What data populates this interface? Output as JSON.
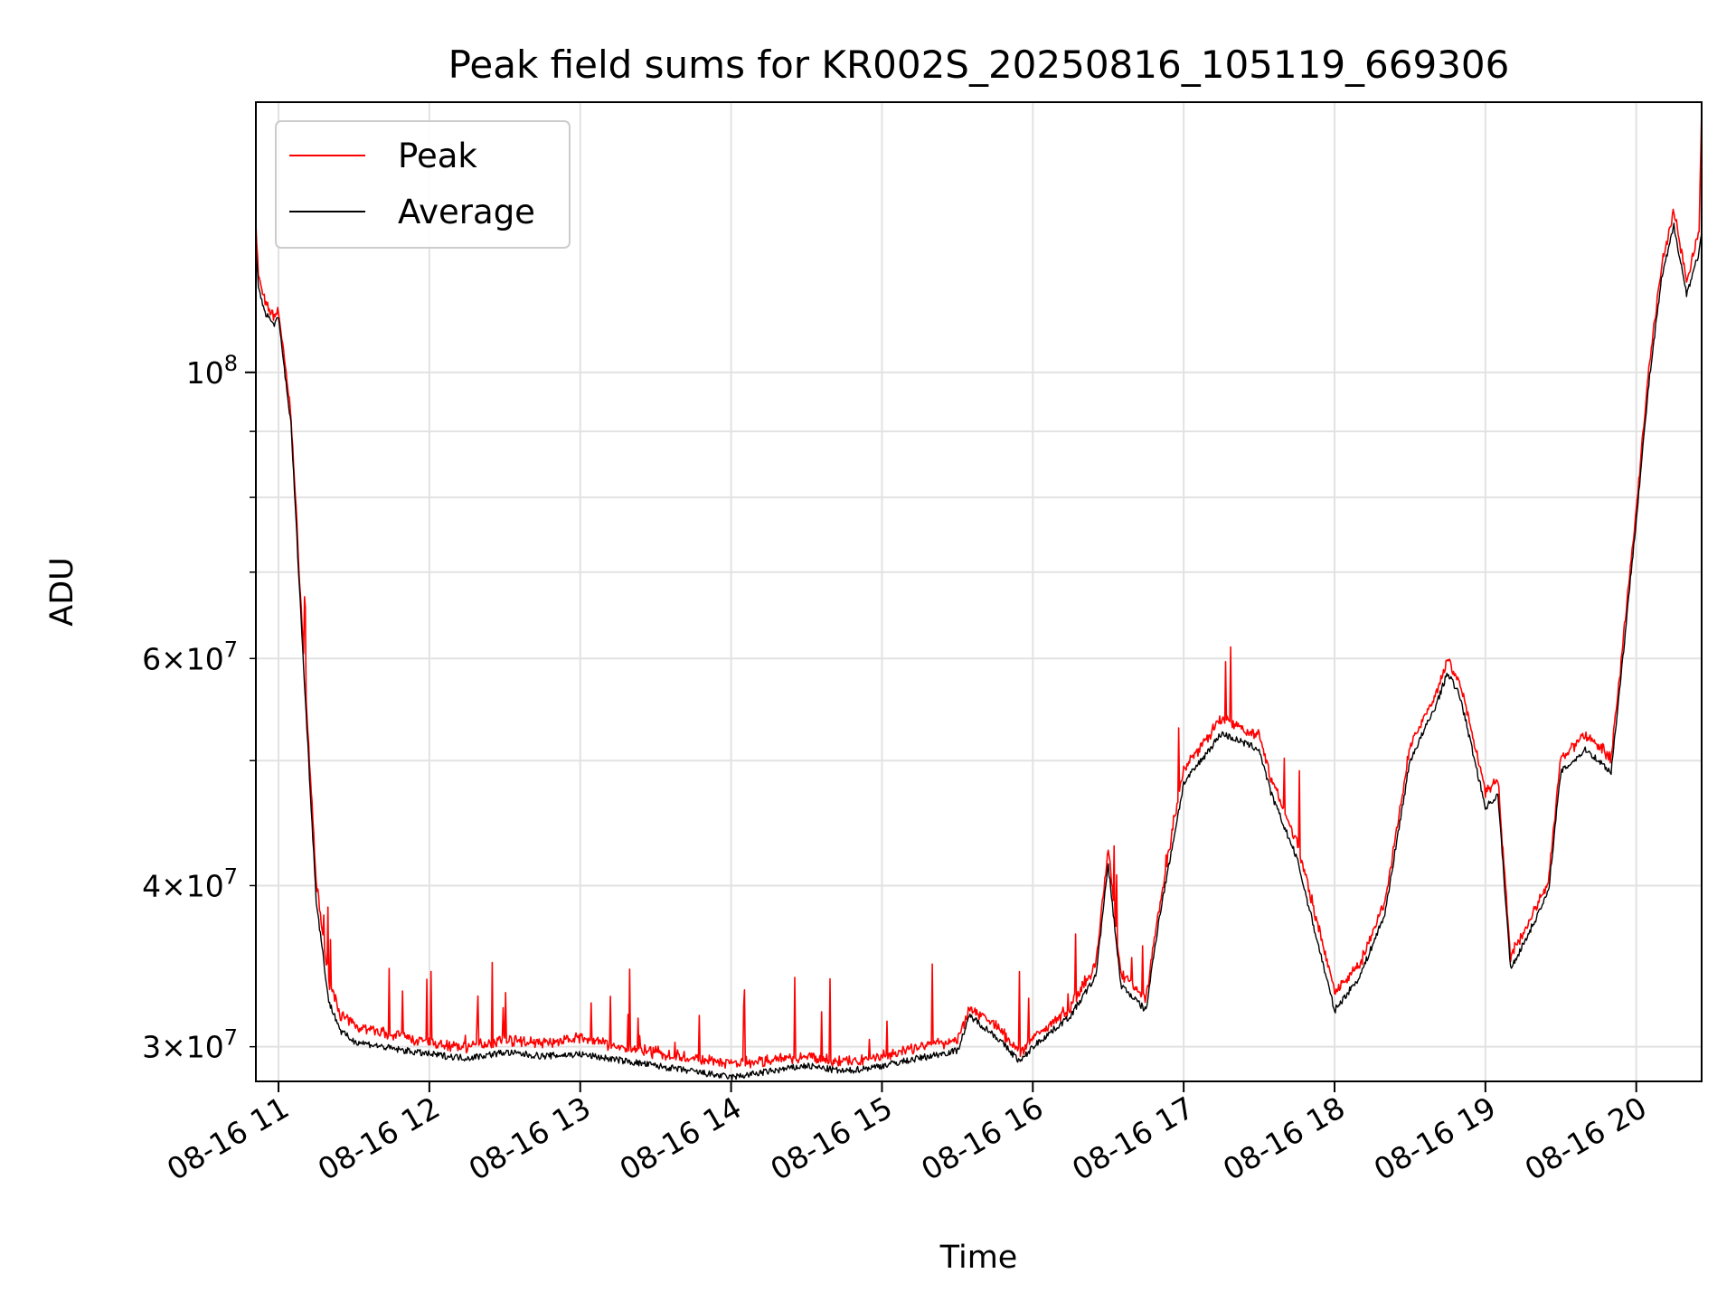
{
  "chart_data": {
    "type": "line",
    "title": "Peak field sums for KR002S_20250816_105119_669306",
    "xlabel": "Time",
    "ylabel": "ADU",
    "y_scale": "log",
    "grid": true,
    "legend_position": "top-left",
    "x_range": [
      "2025-08-16 10:51",
      "2025-08-16 20:26"
    ],
    "ylim": [
      28200000,
      162000000
    ],
    "x_ticks": [
      "08-16 11",
      "08-16 12",
      "08-16 13",
      "08-16 14",
      "08-16 15",
      "08-16 16",
      "08-16 17",
      "08-16 18",
      "08-16 19",
      "08-16 20"
    ],
    "y_ticks_major": [
      {
        "value": 100000000,
        "base": "10",
        "exp": "8",
        "mult": ""
      }
    ],
    "y_ticks_minor": [
      {
        "value": 30000000,
        "mult": "3",
        "base": "10",
        "exp": "7"
      },
      {
        "value": 40000000,
        "mult": "4",
        "base": "10",
        "exp": "7"
      },
      {
        "value": 60000000,
        "mult": "6",
        "base": "10",
        "exp": "7"
      }
    ],
    "series": [
      {
        "name": "Peak",
        "color": "#ff0000",
        "x": [
          "10:51",
          "10:52",
          "10:55",
          "10:58",
          "11:00",
          "11:05",
          "11:10",
          "11:15",
          "11:20",
          "11:25",
          "11:30",
          "11:45",
          "12:00",
          "12:15",
          "12:30",
          "12:45",
          "13:00",
          "13:15",
          "13:30",
          "13:45",
          "14:00",
          "14:15",
          "14:30",
          "14:45",
          "15:00",
          "15:15",
          "15:30",
          "15:35",
          "15:45",
          "15:55",
          "16:00",
          "16:15",
          "16:25",
          "16:30",
          "16:35",
          "16:45",
          "16:50",
          "17:00",
          "17:15",
          "17:30",
          "17:35",
          "17:45",
          "18:00",
          "18:10",
          "18:20",
          "18:30",
          "18:40",
          "18:45",
          "18:50",
          "19:00",
          "19:05",
          "19:10",
          "19:15",
          "19:25",
          "19:30",
          "19:40",
          "19:50",
          "19:55",
          "20:00",
          "20:05",
          "20:10",
          "20:15",
          "20:20",
          "20:25",
          "20:26"
        ],
        "values": [
          130000000,
          118000000,
          112000000,
          110000000,
          111000000,
          92000000,
          60000000,
          40000000,
          33500000,
          31500000,
          31000000,
          30500000,
          30000000,
          29800000,
          30200000,
          30000000,
          30300000,
          29800000,
          29500000,
          29200000,
          28900000,
          29100000,
          29300000,
          29000000,
          29300000,
          29800000,
          30200000,
          32000000,
          31000000,
          29500000,
          30300000,
          32000000,
          34500000,
          42500000,
          34000000,
          32500000,
          38000000,
          49000000,
          53500000,
          52000000,
          48000000,
          43000000,
          33000000,
          34500000,
          38500000,
          51000000,
          56000000,
          59500000,
          57000000,
          47000000,
          48000000,
          35000000,
          36500000,
          40000000,
          50000000,
          52000000,
          50000000,
          62000000,
          78000000,
          100000000,
          120000000,
          133000000,
          117000000,
          128000000,
          160000000
        ]
      },
      {
        "name": "Average",
        "color": "#000000",
        "x": [
          "10:51",
          "10:52",
          "10:55",
          "10:58",
          "11:00",
          "11:05",
          "11:10",
          "11:15",
          "11:20",
          "11:25",
          "11:30",
          "11:45",
          "12:00",
          "12:15",
          "12:30",
          "12:45",
          "13:00",
          "13:15",
          "13:30",
          "13:45",
          "14:00",
          "14:15",
          "14:30",
          "14:45",
          "15:00",
          "15:15",
          "15:30",
          "15:35",
          "15:45",
          "15:55",
          "16:00",
          "16:15",
          "16:25",
          "16:30",
          "16:35",
          "16:45",
          "16:50",
          "17:00",
          "17:15",
          "17:30",
          "17:35",
          "17:45",
          "18:00",
          "18:10",
          "18:20",
          "18:30",
          "18:40",
          "18:45",
          "18:50",
          "19:00",
          "19:05",
          "19:10",
          "19:15",
          "19:25",
          "19:30",
          "19:40",
          "19:50",
          "19:55",
          "20:00",
          "20:05",
          "20:10",
          "20:15",
          "20:20",
          "20:25",
          "20:26"
        ],
        "values": [
          125000000,
          116000000,
          111000000,
          109000000,
          110000000,
          91000000,
          59000000,
          39000000,
          32500000,
          30800000,
          30300000,
          29900000,
          29600000,
          29400000,
          29700000,
          29500000,
          29600000,
          29300000,
          29000000,
          28700000,
          28400000,
          28700000,
          29000000,
          28700000,
          29000000,
          29400000,
          29800000,
          31700000,
          30600000,
          29200000,
          30000000,
          31700000,
          34000000,
          41500000,
          33500000,
          32000000,
          37500000,
          48000000,
          52500000,
          51000000,
          47000000,
          42000000,
          32000000,
          34000000,
          38000000,
          50000000,
          55000000,
          58500000,
          56000000,
          46000000,
          47000000,
          34500000,
          36000000,
          39500000,
          49000000,
          51000000,
          49000000,
          61000000,
          77000000,
          98000000,
          118000000,
          130000000,
          115000000,
          124000000,
          128000000
        ]
      }
    ]
  }
}
